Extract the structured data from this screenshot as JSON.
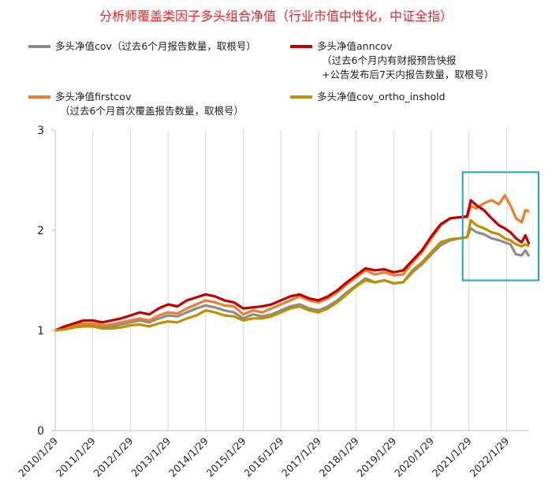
{
  "chart_data": {
    "type": "line",
    "title": "分析师覆盖类因子多头组合净值（行业市值中性化，中证全指）",
    "ylim": [
      0,
      3
    ],
    "y_ticks": [
      "0",
      "1",
      "2",
      "3"
    ],
    "x_ticks": [
      "2010/1/29",
      "2011/1/29",
      "2012/1/29",
      "2013/1/29",
      "2014/1/29",
      "2015/1/29",
      "2016/1/29",
      "2017/1/29",
      "2018/1/29",
      "2019/1/29",
      "2020/1/29",
      "2021/1/29",
      "2022/1/29"
    ],
    "grid": "vertical",
    "legend": [
      {
        "lines": [
          "多头净值cov（过去6个月报告数量，取根号）"
        ],
        "color": "#8c8c8c"
      },
      {
        "lines": [
          "多头净值anncov",
          "（过去6个月内有财报预告快报",
          "+公告发布后7天内报告数量，取根号）"
        ],
        "color": "#c00000"
      },
      {
        "lines": [
          "多头净值firstcov",
          "（过去6个月首次覆盖报告数量，取根号）"
        ],
        "color": "#ed7d31"
      },
      {
        "lines": [
          "多头净值cov_ortho_inshold"
        ],
        "color": "#bf9000"
      }
    ],
    "x_year_range": [
      2010.0,
      2022.6
    ],
    "series": [
      {
        "key": "cov",
        "color": "#8c8c8c",
        "points": [
          [
            2010.0,
            1.0
          ],
          [
            2010.25,
            1.02
          ],
          [
            2010.5,
            1.04
          ],
          [
            2010.75,
            1.06
          ],
          [
            2011.0,
            1.05
          ],
          [
            2011.25,
            1.03
          ],
          [
            2011.5,
            1.04
          ],
          [
            2011.75,
            1.06
          ],
          [
            2012.0,
            1.08
          ],
          [
            2012.25,
            1.1
          ],
          [
            2012.5,
            1.08
          ],
          [
            2012.75,
            1.12
          ],
          [
            2013.0,
            1.15
          ],
          [
            2013.25,
            1.14
          ],
          [
            2013.5,
            1.18
          ],
          [
            2013.75,
            1.22
          ],
          [
            2014.0,
            1.25
          ],
          [
            2014.25,
            1.23
          ],
          [
            2014.5,
            1.2
          ],
          [
            2014.75,
            1.18
          ],
          [
            2015.0,
            1.12
          ],
          [
            2015.25,
            1.16
          ],
          [
            2015.5,
            1.14
          ],
          [
            2015.75,
            1.16
          ],
          [
            2016.0,
            1.2
          ],
          [
            2016.25,
            1.24
          ],
          [
            2016.5,
            1.26
          ],
          [
            2016.75,
            1.22
          ],
          [
            2017.0,
            1.2
          ],
          [
            2017.25,
            1.24
          ],
          [
            2017.5,
            1.3
          ],
          [
            2017.75,
            1.38
          ],
          [
            2018.0,
            1.45
          ],
          [
            2018.25,
            1.52
          ],
          [
            2018.5,
            1.48
          ],
          [
            2018.75,
            1.5
          ],
          [
            2019.0,
            1.47
          ],
          [
            2019.25,
            1.48
          ],
          [
            2019.5,
            1.58
          ],
          [
            2019.75,
            1.66
          ],
          [
            2020.0,
            1.76
          ],
          [
            2020.25,
            1.85
          ],
          [
            2020.5,
            1.9
          ],
          [
            2020.75,
            1.92
          ],
          [
            2020.95,
            1.93
          ],
          [
            2021.05,
            2.02
          ],
          [
            2021.2,
            1.98
          ],
          [
            2021.4,
            1.96
          ],
          [
            2021.6,
            1.92
          ],
          [
            2021.8,
            1.9
          ],
          [
            2021.95,
            1.88
          ],
          [
            2022.1,
            1.86
          ],
          [
            2022.25,
            1.76
          ],
          [
            2022.4,
            1.75
          ],
          [
            2022.5,
            1.8
          ],
          [
            2022.6,
            1.74
          ]
        ]
      },
      {
        "key": "anncov",
        "color": "#c00000",
        "points": [
          [
            2010.0,
            1.0
          ],
          [
            2010.25,
            1.04
          ],
          [
            2010.5,
            1.07
          ],
          [
            2010.75,
            1.1
          ],
          [
            2011.0,
            1.1
          ],
          [
            2011.25,
            1.08
          ],
          [
            2011.5,
            1.1
          ],
          [
            2011.75,
            1.12
          ],
          [
            2012.0,
            1.15
          ],
          [
            2012.25,
            1.18
          ],
          [
            2012.5,
            1.16
          ],
          [
            2012.75,
            1.22
          ],
          [
            2013.0,
            1.26
          ],
          [
            2013.25,
            1.24
          ],
          [
            2013.5,
            1.3
          ],
          [
            2013.75,
            1.33
          ],
          [
            2014.0,
            1.36
          ],
          [
            2014.25,
            1.34
          ],
          [
            2014.5,
            1.3
          ],
          [
            2014.75,
            1.28
          ],
          [
            2015.0,
            1.22
          ],
          [
            2015.25,
            1.23
          ],
          [
            2015.5,
            1.24
          ],
          [
            2015.75,
            1.26
          ],
          [
            2016.0,
            1.3
          ],
          [
            2016.25,
            1.34
          ],
          [
            2016.5,
            1.36
          ],
          [
            2016.75,
            1.32
          ],
          [
            2017.0,
            1.3
          ],
          [
            2017.25,
            1.34
          ],
          [
            2017.5,
            1.4
          ],
          [
            2017.75,
            1.48
          ],
          [
            2018.0,
            1.55
          ],
          [
            2018.25,
            1.62
          ],
          [
            2018.5,
            1.6
          ],
          [
            2018.75,
            1.61
          ],
          [
            2019.0,
            1.58
          ],
          [
            2019.25,
            1.6
          ],
          [
            2019.5,
            1.7
          ],
          [
            2019.75,
            1.8
          ],
          [
            2020.0,
            1.94
          ],
          [
            2020.25,
            2.06
          ],
          [
            2020.5,
            2.12
          ],
          [
            2020.75,
            2.13
          ],
          [
            2020.95,
            2.14
          ],
          [
            2021.05,
            2.3
          ],
          [
            2021.2,
            2.25
          ],
          [
            2021.4,
            2.2
          ],
          [
            2021.6,
            2.12
          ],
          [
            2021.8,
            2.05
          ],
          [
            2021.95,
            2.02
          ],
          [
            2022.1,
            1.98
          ],
          [
            2022.25,
            1.92
          ],
          [
            2022.4,
            1.88
          ],
          [
            2022.5,
            1.95
          ],
          [
            2022.6,
            1.86
          ]
        ]
      },
      {
        "key": "firstcov",
        "color": "#ed7d31",
        "points": [
          [
            2010.0,
            1.0
          ],
          [
            2010.25,
            1.03
          ],
          [
            2010.5,
            1.05
          ],
          [
            2010.75,
            1.07
          ],
          [
            2011.0,
            1.07
          ],
          [
            2011.25,
            1.05
          ],
          [
            2011.5,
            1.06
          ],
          [
            2011.75,
            1.08
          ],
          [
            2012.0,
            1.1
          ],
          [
            2012.25,
            1.12
          ],
          [
            2012.5,
            1.1
          ],
          [
            2012.75,
            1.15
          ],
          [
            2013.0,
            1.18
          ],
          [
            2013.25,
            1.17
          ],
          [
            2013.5,
            1.22
          ],
          [
            2013.75,
            1.26
          ],
          [
            2014.0,
            1.3
          ],
          [
            2014.25,
            1.28
          ],
          [
            2014.5,
            1.25
          ],
          [
            2014.75,
            1.24
          ],
          [
            2015.0,
            1.16
          ],
          [
            2015.25,
            1.2
          ],
          [
            2015.5,
            1.18
          ],
          [
            2015.75,
            1.22
          ],
          [
            2016.0,
            1.26
          ],
          [
            2016.25,
            1.3
          ],
          [
            2016.5,
            1.34
          ],
          [
            2016.75,
            1.3
          ],
          [
            2017.0,
            1.28
          ],
          [
            2017.25,
            1.32
          ],
          [
            2017.5,
            1.38
          ],
          [
            2017.75,
            1.46
          ],
          [
            2018.0,
            1.53
          ],
          [
            2018.25,
            1.6
          ],
          [
            2018.5,
            1.56
          ],
          [
            2018.75,
            1.58
          ],
          [
            2019.0,
            1.55
          ],
          [
            2019.25,
            1.56
          ],
          [
            2019.5,
            1.68
          ],
          [
            2019.75,
            1.78
          ],
          [
            2020.0,
            1.92
          ],
          [
            2020.25,
            2.05
          ],
          [
            2020.5,
            2.12
          ],
          [
            2020.75,
            2.13
          ],
          [
            2020.95,
            2.13
          ],
          [
            2021.05,
            2.24
          ],
          [
            2021.2,
            2.22
          ],
          [
            2021.4,
            2.27
          ],
          [
            2021.6,
            2.3
          ],
          [
            2021.8,
            2.26
          ],
          [
            2021.95,
            2.35
          ],
          [
            2022.1,
            2.25
          ],
          [
            2022.25,
            2.12
          ],
          [
            2022.4,
            2.08
          ],
          [
            2022.5,
            2.2
          ],
          [
            2022.6,
            2.19
          ]
        ]
      },
      {
        "key": "cov_ortho_inshold",
        "color": "#bf9000",
        "points": [
          [
            2010.0,
            1.0
          ],
          [
            2010.25,
            1.01
          ],
          [
            2010.5,
            1.03
          ],
          [
            2010.75,
            1.04
          ],
          [
            2011.0,
            1.04
          ],
          [
            2011.25,
            1.02
          ],
          [
            2011.5,
            1.02
          ],
          [
            2011.75,
            1.03
          ],
          [
            2012.0,
            1.05
          ],
          [
            2012.25,
            1.06
          ],
          [
            2012.5,
            1.04
          ],
          [
            2012.75,
            1.07
          ],
          [
            2013.0,
            1.09
          ],
          [
            2013.25,
            1.08
          ],
          [
            2013.5,
            1.12
          ],
          [
            2013.75,
            1.15
          ],
          [
            2014.0,
            1.2
          ],
          [
            2014.25,
            1.18
          ],
          [
            2014.5,
            1.15
          ],
          [
            2014.75,
            1.14
          ],
          [
            2015.0,
            1.1
          ],
          [
            2015.25,
            1.12
          ],
          [
            2015.5,
            1.12
          ],
          [
            2015.75,
            1.14
          ],
          [
            2016.0,
            1.18
          ],
          [
            2016.25,
            1.22
          ],
          [
            2016.5,
            1.24
          ],
          [
            2016.75,
            1.2
          ],
          [
            2017.0,
            1.18
          ],
          [
            2017.25,
            1.22
          ],
          [
            2017.5,
            1.28
          ],
          [
            2017.75,
            1.36
          ],
          [
            2018.0,
            1.44
          ],
          [
            2018.25,
            1.5
          ],
          [
            2018.5,
            1.48
          ],
          [
            2018.75,
            1.5
          ],
          [
            2019.0,
            1.47
          ],
          [
            2019.25,
            1.48
          ],
          [
            2019.5,
            1.6
          ],
          [
            2019.75,
            1.68
          ],
          [
            2020.0,
            1.78
          ],
          [
            2020.25,
            1.88
          ],
          [
            2020.5,
            1.91
          ],
          [
            2020.75,
            1.92
          ],
          [
            2020.95,
            1.93
          ],
          [
            2021.05,
            2.1
          ],
          [
            2021.2,
            2.05
          ],
          [
            2021.4,
            2.02
          ],
          [
            2021.6,
            1.98
          ],
          [
            2021.8,
            1.96
          ],
          [
            2021.95,
            1.92
          ],
          [
            2022.1,
            1.9
          ],
          [
            2022.25,
            1.86
          ],
          [
            2022.4,
            1.84
          ],
          [
            2022.5,
            1.86
          ],
          [
            2022.6,
            1.84
          ]
        ]
      }
    ],
    "highlight_box": {
      "x_range": [
        2021.0,
        2022.6
      ],
      "y_range": [
        1.5,
        2.58
      ],
      "color": "#1ba1e2"
    }
  }
}
